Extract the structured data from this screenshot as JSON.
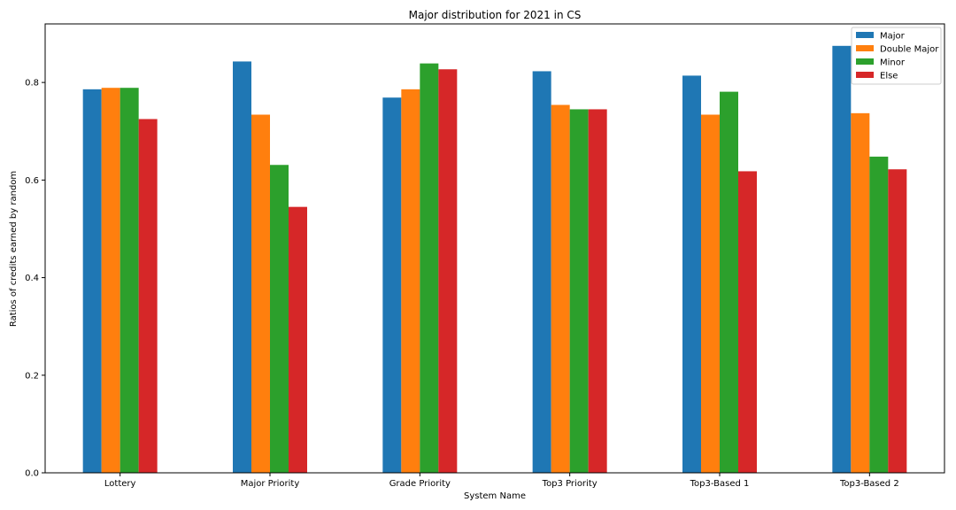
{
  "chart_data": {
    "type": "bar",
    "title": "Major distribution for 2021 in CS",
    "xlabel": "System Name",
    "ylabel": "Ratios of credits earned by random",
    "categories": [
      "Lottery",
      "Major Priority",
      "Grade Priority",
      "Top3 Priority",
      "Top3-Based 1",
      "Top3-Based 2"
    ],
    "ylim": [
      0,
      0.92
    ],
    "yticks": [
      0.0,
      0.2,
      0.4,
      0.6,
      0.8
    ],
    "ytick_labels": [
      "0.0",
      "0.2",
      "0.4",
      "0.6",
      "0.8"
    ],
    "grid": false,
    "legend_position": "top-right",
    "series": [
      {
        "name": "Major",
        "color": "#1f77b4",
        "values": [
          0.786,
          0.843,
          0.769,
          0.823,
          0.814,
          0.875
        ]
      },
      {
        "name": "Double Major",
        "color": "#ff7f0e",
        "values": [
          0.789,
          0.734,
          0.786,
          0.754,
          0.734,
          0.737
        ]
      },
      {
        "name": "Minor",
        "color": "#2ca02c",
        "values": [
          0.789,
          0.631,
          0.839,
          0.745,
          0.781,
          0.648
        ]
      },
      {
        "name": "Else",
        "color": "#d62728",
        "values": [
          0.725,
          0.545,
          0.827,
          0.745,
          0.618,
          0.622
        ]
      }
    ]
  }
}
